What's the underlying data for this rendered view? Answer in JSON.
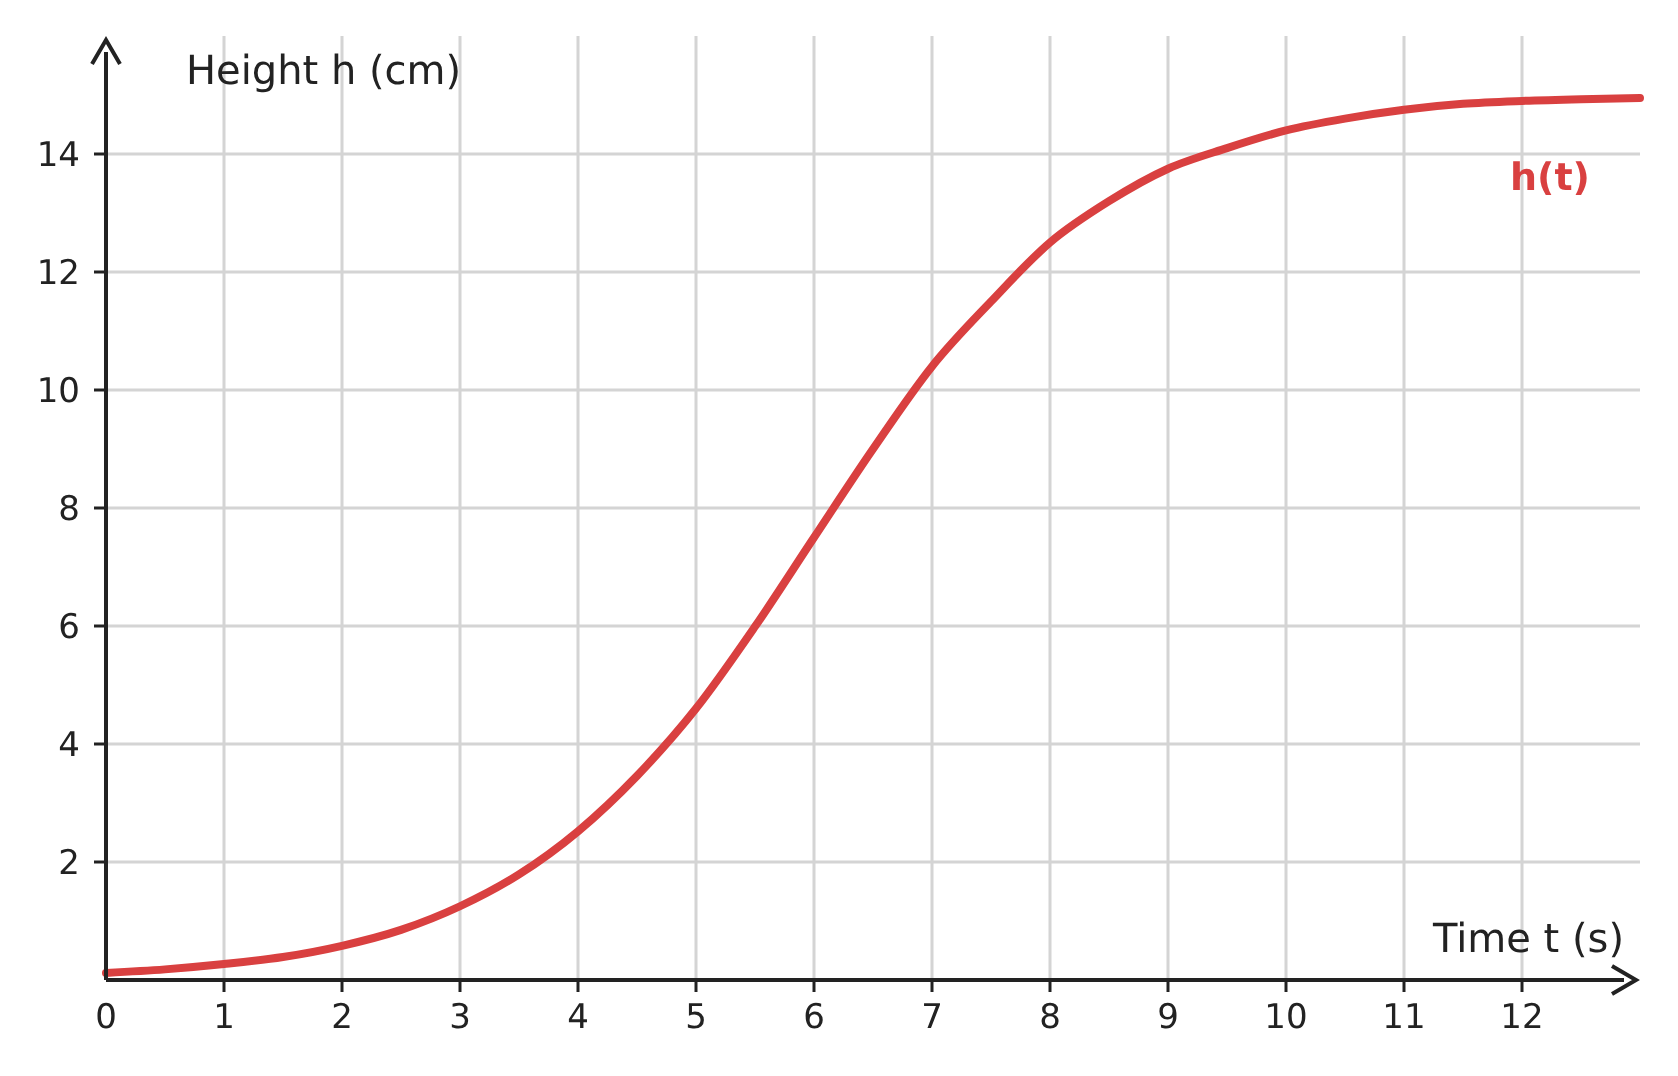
{
  "chart_data": {
    "type": "line",
    "xlabel": "Time t (s)",
    "ylabel": "Height h (cm)",
    "x": [
      0,
      0.5,
      1,
      1.5,
      2,
      2.5,
      3,
      3.5,
      4,
      4.5,
      5,
      5.5,
      6,
      6.5,
      7,
      7.5,
      8,
      8.5,
      9,
      9.5,
      10,
      10.5,
      11,
      11.5,
      12,
      12.5,
      13
    ],
    "series": [
      {
        "name": "h(t)",
        "color": "#d94040",
        "values": [
          0.12,
          0.18,
          0.27,
          0.39,
          0.58,
          0.85,
          1.25,
          1.79,
          2.52,
          3.46,
          4.6,
          5.99,
          7.5,
          9.0,
          10.4,
          11.5,
          12.5,
          13.2,
          13.75,
          14.1,
          14.4,
          14.6,
          14.75,
          14.85,
          14.9,
          14.93,
          14.95
        ]
      }
    ],
    "xlim": [
      0,
      13
    ],
    "ylim": [
      0,
      16
    ],
    "xticks": [
      0,
      1,
      2,
      3,
      4,
      5,
      6,
      7,
      8,
      9,
      10,
      11,
      12
    ],
    "yticks": [
      2,
      4,
      6,
      8,
      10,
      12,
      14
    ],
    "grid": true,
    "legend": false,
    "marker": "none",
    "line_style": "solid"
  }
}
